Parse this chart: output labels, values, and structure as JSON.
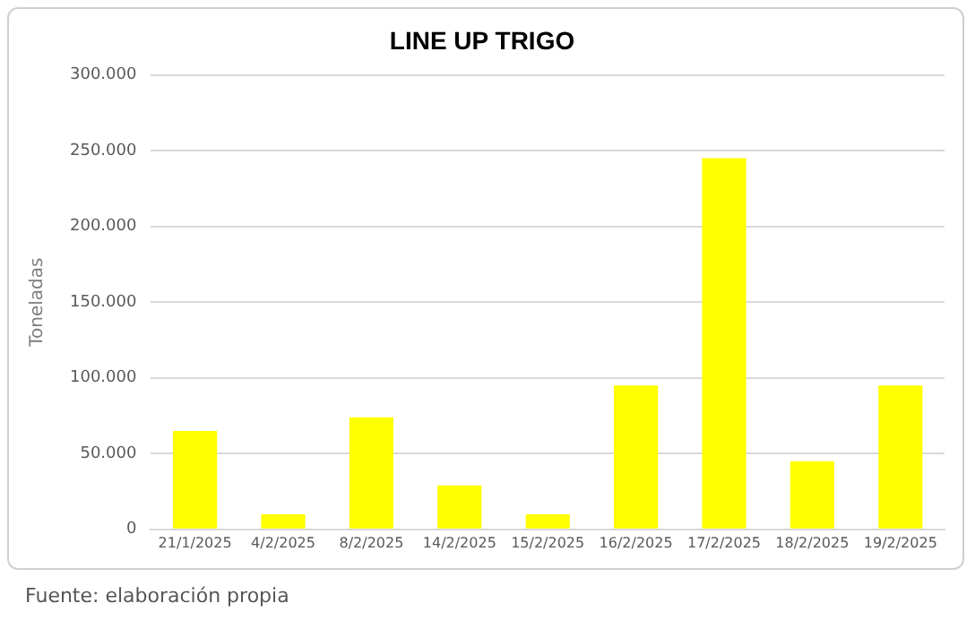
{
  "chart_data": {
    "type": "bar",
    "title": "LINE UP TRIGO",
    "ylabel": "Toneladas",
    "categories": [
      "21/1/2025",
      "4/2/2025",
      "8/2/2025",
      "14/2/2025",
      "15/2/2025",
      "16/2/2025",
      "17/2/2025",
      "18/2/2025",
      "19/2/2025"
    ],
    "values": [
      65000,
      10000,
      74000,
      29000,
      10000,
      95000,
      245000,
      45000,
      95000
    ],
    "color": "#ffff00",
    "ylim": [
      0,
      300000
    ],
    "yticks": [
      {
        "value": 0,
        "label": "0"
      },
      {
        "value": 50000,
        "label": "50.000"
      },
      {
        "value": 100000,
        "label": "100.000"
      },
      {
        "value": 150000,
        "label": "150.000"
      },
      {
        "value": 200000,
        "label": "200.000"
      },
      {
        "value": 250000,
        "label": "250.000"
      },
      {
        "value": 300000,
        "label": "300.000"
      }
    ],
    "grid": "y",
    "legend": false,
    "annotations": [
      "Fuente: elaboración propia"
    ]
  }
}
